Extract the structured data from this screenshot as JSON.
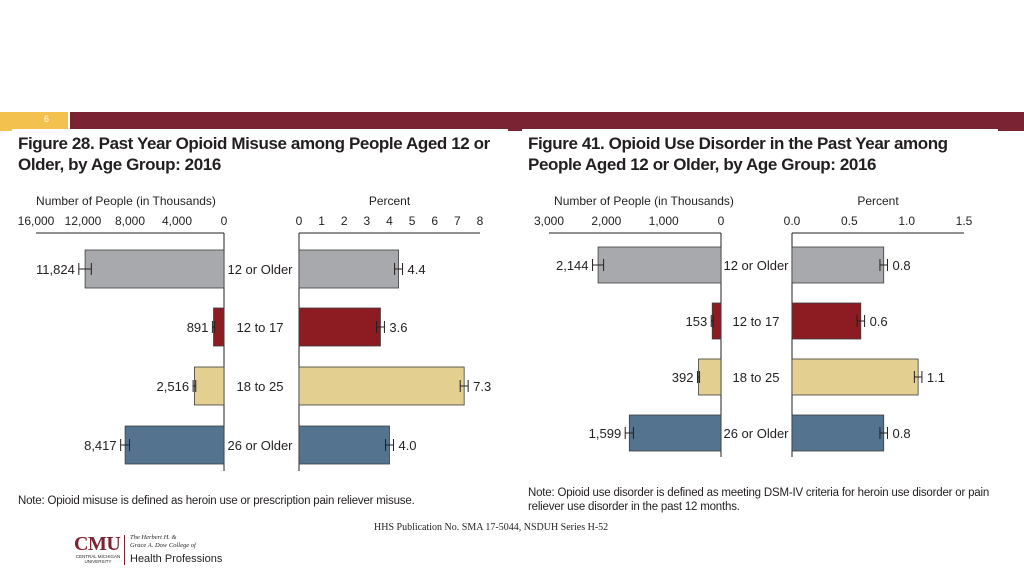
{
  "slide": {
    "number": "6",
    "source": "HHS Publication No. SMA 17-5044, NSDUH Series H-52",
    "logo": {
      "wordmark": "CMU",
      "sub": "CENTRAL MICHIGAN UNIVERSITY",
      "line1": "The Herbert H. &",
      "line2": "Grace A. Dow College of",
      "line3": "Health Professions"
    },
    "colors": {
      "band": "#7a2332",
      "accent": "#f2c14e"
    }
  },
  "chart_data": [
    {
      "type": "bar",
      "title": "Figure 28. Past Year Opioid Misuse among People Aged 12 or Older, by Age Group: 2016",
      "note": "Note: Opioid misuse is defined as heroin use or prescription pain reliever misuse.",
      "categories": [
        "12 or Older",
        "12 to 17",
        "18 to 25",
        "26 or Older"
      ],
      "colors": [
        "#a7a9ac",
        "#8c1c22",
        "#e3cf8f",
        "#53738f"
      ],
      "count_panel": {
        "label": "Number of People (in Thousands)",
        "ticks": [
          "16,000",
          "12,000",
          "8,000",
          "4,000",
          "0"
        ],
        "range": [
          0,
          16000
        ],
        "values": [
          11824,
          891,
          2516,
          8417
        ],
        "value_labels": [
          "11,824",
          "891",
          "2,516",
          "8,417"
        ]
      },
      "percent_panel": {
        "label": "Percent",
        "ticks": [
          "0",
          "1",
          "2",
          "3",
          "4",
          "5",
          "6",
          "7",
          "8"
        ],
        "range": [
          0,
          8
        ],
        "values": [
          4.4,
          3.6,
          7.3,
          4.0
        ],
        "value_labels": [
          "4.4",
          "3.6",
          "7.3",
          "4.0"
        ]
      }
    },
    {
      "type": "bar",
      "title": "Figure 41. Opioid Use Disorder in the Past Year among People Aged 12 or Older, by Age Group: 2016",
      "note": "Note: Opioid use disorder is defined as meeting DSM-IV criteria for heroin use disorder or pain reliever use disorder in the past 12 months.",
      "categories": [
        "12 or Older",
        "12 to 17",
        "18 to 25",
        "26 or Older"
      ],
      "colors": [
        "#a7a9ac",
        "#8c1c22",
        "#e3cf8f",
        "#53738f"
      ],
      "count_panel": {
        "label": "Number of People (in Thousands)",
        "ticks": [
          "3,000",
          "2,000",
          "1,000",
          "0"
        ],
        "range": [
          0,
          3000
        ],
        "values": [
          2144,
          153,
          392,
          1599
        ],
        "value_labels": [
          "2,144",
          "153",
          "392",
          "1,599"
        ]
      },
      "percent_panel": {
        "label": "Percent",
        "ticks": [
          "0.0",
          "0.5",
          "1.0",
          "1.5"
        ],
        "range": [
          0,
          1.5
        ],
        "values": [
          0.8,
          0.6,
          1.1,
          0.8
        ],
        "value_labels": [
          "0.8",
          "0.6",
          "1.1",
          "0.8"
        ]
      }
    }
  ]
}
